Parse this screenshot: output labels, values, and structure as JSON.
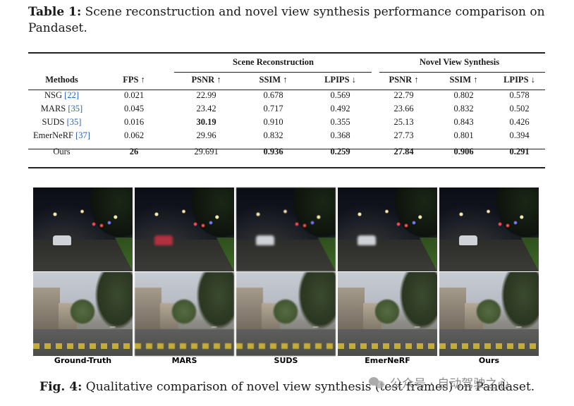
{
  "table_caption": {
    "label": "Table 1:",
    "text": "Scene reconstruction and novel view synthesis performance comparison on Pandaset."
  },
  "table": {
    "groups": [
      "Scene Reconstruction",
      "Novel View Synthesis"
    ],
    "columns": [
      "Methods",
      "FPS ↑",
      "PSNR ↑",
      "SSIM ↑",
      "LPIPS ↓",
      "PSNR ↑",
      "SSIM ↑",
      "LPIPS ↓"
    ],
    "rows": [
      {
        "method": "NSG",
        "cite": "[22]",
        "fps": "0.021",
        "sr_psnr": "22.99",
        "sr_ssim": "0.678",
        "sr_lpips": "0.569",
        "nv_psnr": "22.79",
        "nv_ssim": "0.802",
        "nv_lpips": "0.578"
      },
      {
        "method": "MARS",
        "cite": "[35]",
        "fps": "0.045",
        "sr_psnr": "23.42",
        "sr_ssim": "0.717",
        "sr_lpips": "0.492",
        "nv_psnr": "23.66",
        "nv_ssim": "0.832",
        "nv_lpips": "0.502"
      },
      {
        "method": "SUDS",
        "cite": "[35]",
        "fps": "0.016",
        "sr_psnr": "30.19",
        "sr_ssim": "0.910",
        "sr_lpips": "0.355",
        "nv_psnr": "25.13",
        "nv_ssim": "0.843",
        "nv_lpips": "0.426"
      },
      {
        "method": "EmerNeRF",
        "cite": "[37]",
        "fps": "0.062",
        "sr_psnr": "29.96",
        "sr_ssim": "0.832",
        "sr_lpips": "0.368",
        "nv_psnr": "27.73",
        "nv_ssim": "0.801",
        "nv_lpips": "0.394"
      }
    ],
    "ours": {
      "method": "Ours",
      "fps": "26",
      "sr_psnr": "29.691",
      "sr_ssim": "0.936",
      "sr_lpips": "0.259",
      "nv_psnr": "27.84",
      "nv_ssim": "0.906",
      "nv_lpips": "0.291"
    }
  },
  "figure": {
    "labels": [
      "Ground-Truth",
      "MARS",
      "SUDS",
      "EmerNeRF",
      "Ours"
    ]
  },
  "figure_caption": {
    "label": "Fig. 4:",
    "text": "Qualitative comparison of novel view synthesis (test frames) on Pandaset."
  },
  "watermark": "公众号 · 自动驾驶之心"
}
